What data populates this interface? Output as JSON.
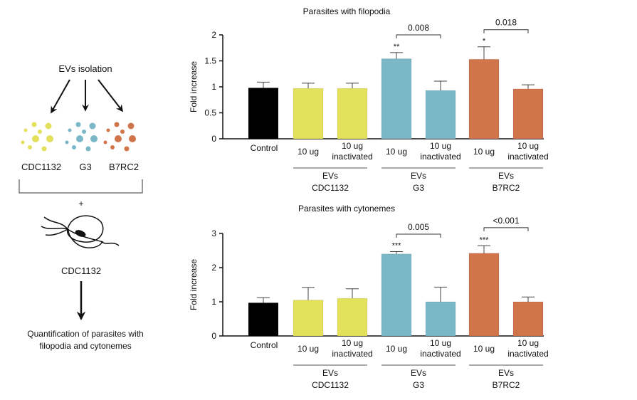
{
  "diagram": {
    "isolation_label": "EVs isolation",
    "strains": [
      {
        "name": "CDC1132",
        "color": "#e3e05c"
      },
      {
        "name": "G3",
        "color": "#7ab8c8"
      },
      {
        "name": "B7RC2",
        "color": "#d0744a"
      }
    ],
    "plus": "+",
    "parasite_label": "CDC1132",
    "result_line1": "Quantification of parasites with",
    "result_line2": "filopodia and cytonemes"
  },
  "chart_data": [
    {
      "type": "bar",
      "title": "Parasites with filopodia",
      "ylabel": "Fold increase",
      "ylim": [
        0,
        2
      ],
      "yticks": [
        "0",
        "0.5",
        "1",
        "1.5",
        "2"
      ],
      "ytick_values": [
        0,
        0.5,
        1,
        1.5,
        2
      ],
      "categories": [
        "Control",
        "10 ug",
        "10 ug inactivated",
        "10 ug",
        "10 ug inactivated",
        "10 ug",
        "10 ug inactivated"
      ],
      "values": [
        0.98,
        0.97,
        0.97,
        1.54,
        0.93,
        1.53,
        0.96
      ],
      "error_upper": [
        1.09,
        1.07,
        1.07,
        1.66,
        1.11,
        1.77,
        1.04
      ],
      "colors": [
        "#000000",
        "#e3e05c",
        "#e3e05c",
        "#7ab8c8",
        "#7ab8c8",
        "#d0744a",
        "#d0744a"
      ],
      "stars": [
        "",
        "",
        "",
        "**",
        "",
        "*",
        ""
      ],
      "groups": [
        {
          "line1": "EVs",
          "line2": "CDC1132",
          "bars": [
            1,
            2
          ]
        },
        {
          "line1": "EVs",
          "line2": "G3",
          "bars": [
            3,
            4
          ]
        },
        {
          "line1": "EVs",
          "line2": "B7RC2",
          "bars": [
            5,
            6
          ]
        }
      ],
      "comparisons": [
        {
          "from": 3,
          "to": 4,
          "label": "0.008",
          "level": 2.0
        },
        {
          "from": 5,
          "to": 6,
          "label": "0.018",
          "level": 2.1
        }
      ]
    },
    {
      "type": "bar",
      "title": "Parasites with cytonemes",
      "ylabel": "Fold increase",
      "ylim": [
        0,
        3
      ],
      "yticks": [
        "0",
        "1",
        "2",
        "3"
      ],
      "ytick_values": [
        0,
        1,
        2,
        3
      ],
      "categories": [
        "Control",
        "10 ug",
        "10 ug inactivated",
        "10 ug",
        "10 ug inactivated",
        "10 ug",
        "10 ug inactivated"
      ],
      "values": [
        0.97,
        1.05,
        1.1,
        2.4,
        1.0,
        2.42,
        1.0
      ],
      "error_upper": [
        1.12,
        1.42,
        1.38,
        2.47,
        1.43,
        2.64,
        1.14
      ],
      "colors": [
        "#000000",
        "#e3e05c",
        "#e3e05c",
        "#7ab8c8",
        "#7ab8c8",
        "#d0744a",
        "#d0744a"
      ],
      "stars": [
        "",
        "",
        "",
        "***",
        "",
        "***",
        ""
      ],
      "groups": [
        {
          "line1": "EVs",
          "line2": "CDC1132",
          "bars": [
            1,
            2
          ]
        },
        {
          "line1": "EVs",
          "line2": "G3",
          "bars": [
            3,
            4
          ]
        },
        {
          "line1": "EVs",
          "line2": "B7RC2",
          "bars": [
            5,
            6
          ]
        }
      ],
      "comparisons": [
        {
          "from": 3,
          "to": 4,
          "label": "0.005",
          "level": 2.98
        },
        {
          "from": 5,
          "to": 6,
          "label": "<0.001",
          "level": 3.17
        }
      ]
    }
  ]
}
